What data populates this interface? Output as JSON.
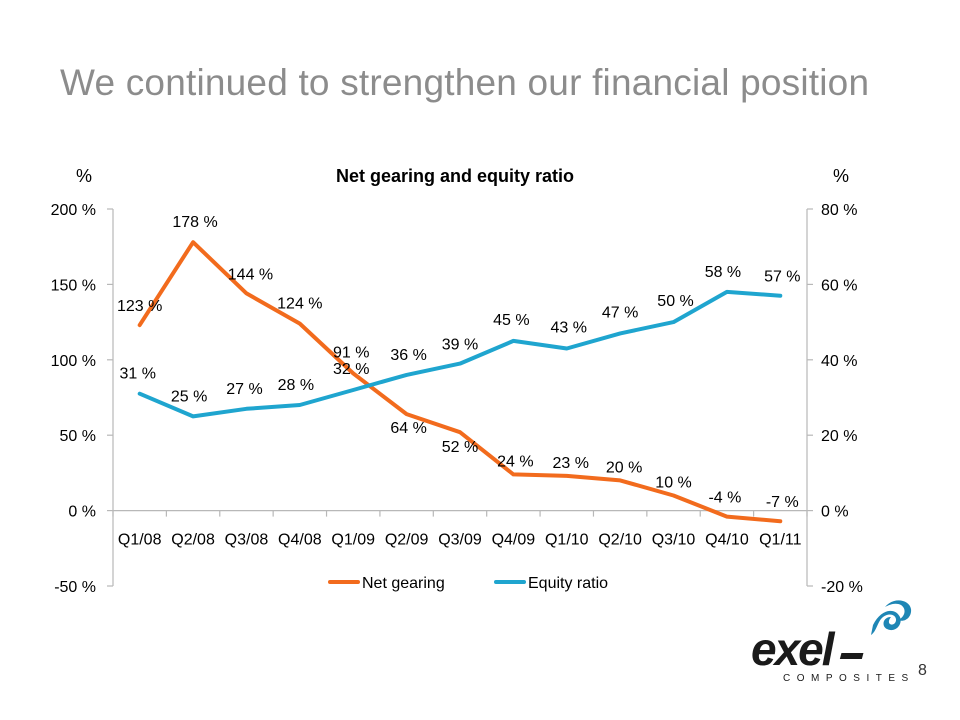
{
  "slide": {
    "title": "We continued to strengthen our financial position",
    "page_number": "8"
  },
  "logo": {
    "brand": "exel",
    "sub": "COMPOSITES"
  },
  "colors": {
    "net_gearing": "#F26B1D",
    "equity_ratio": "#1FA5CF",
    "axis": "#b8b8b8",
    "title_gray": "#8c8c8c"
  },
  "chart_data": {
    "type": "line",
    "title": "Net gearing and equity ratio",
    "y_left_unit": "%",
    "y_right_unit": "%",
    "categories": [
      "Q1/08",
      "Q2/08",
      "Q3/08",
      "Q4/08",
      "Q1/09",
      "Q2/09",
      "Q3/09",
      "Q4/09",
      "Q1/10",
      "Q2/10",
      "Q3/10",
      "Q4/10",
      "Q1/11"
    ],
    "y_left": {
      "lim": [
        -50,
        200
      ],
      "ticks": [
        200,
        150,
        100,
        50,
        0,
        -50
      ],
      "tick_labels": [
        "200 %",
        "150 %",
        "100 %",
        "50 %",
        "0 %",
        "-50 %"
      ]
    },
    "y_right": {
      "lim": [
        -20,
        80
      ],
      "ticks": [
        80,
        60,
        40,
        20,
        0,
        -20
      ],
      "tick_labels": [
        "80 %",
        "60 %",
        "40 %",
        "20 %",
        "0 %",
        "-20 %"
      ]
    },
    "grid": false,
    "legend_position": "bottom",
    "series": [
      {
        "name": "Net gearing",
        "axis": "left",
        "color": "#F26B1D",
        "values": [
          123,
          178,
          144,
          124,
          91,
          64,
          52,
          24,
          23,
          20,
          10,
          -4,
          -7
        ],
        "labels": [
          "123 %",
          "178 %",
          "144 %",
          "124 %",
          "91 %",
          "64 %",
          "52 %",
          "24 %",
          "23 %",
          "20 %",
          "10 %",
          "-4 %",
          "-7 %"
        ]
      },
      {
        "name": "Equity ratio",
        "axis": "right",
        "color": "#1FA5CF",
        "values": [
          31,
          25,
          27,
          28,
          32,
          36,
          39,
          45,
          43,
          47,
          50,
          58,
          57
        ],
        "labels": [
          "31 %",
          "25 %",
          "27 %",
          "28 %",
          "32 %",
          "36 %",
          "39 %",
          "45 %",
          "43 %",
          "47 %",
          "50 %",
          "58 %",
          "57 %"
        ]
      }
    ]
  }
}
